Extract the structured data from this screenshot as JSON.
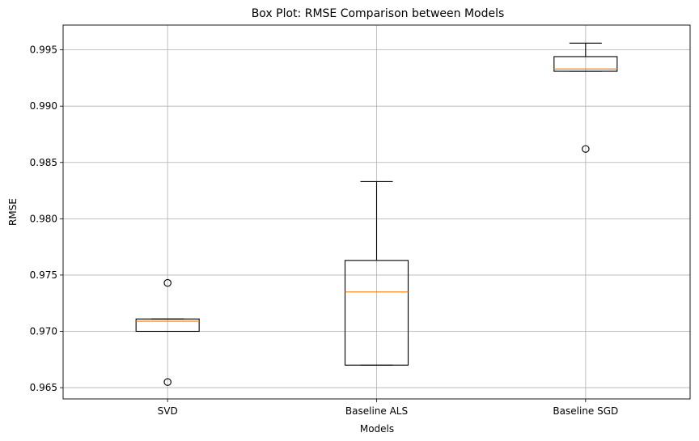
{
  "chart_data": {
    "type": "box",
    "title": "Box Plot: RMSE Comparison between Models",
    "xlabel": "Models",
    "ylabel": "RMSE",
    "categories": [
      "SVD",
      "Baseline ALS",
      "Baseline SGD"
    ],
    "ylim": [
      0.964,
      0.9972
    ],
    "yticks": [
      0.965,
      0.97,
      0.975,
      0.98,
      0.985,
      0.99,
      0.995
    ],
    "ytick_labels": [
      "0.965",
      "0.970",
      "0.975",
      "0.980",
      "0.985",
      "0.990",
      "0.995"
    ],
    "grid": true,
    "boxes": [
      {
        "category": "SVD",
        "whisker_low": 0.97,
        "q1": 0.97,
        "median": 0.9709,
        "q3": 0.9711,
        "whisker_high": 0.9711,
        "outliers": [
          0.9743,
          0.9655
        ]
      },
      {
        "category": "Baseline ALS",
        "whisker_low": 0.967,
        "q1": 0.967,
        "median": 0.9735,
        "q3": 0.9763,
        "whisker_high": 0.9833,
        "outliers": []
      },
      {
        "category": "Baseline SGD",
        "whisker_low": 0.9931,
        "q1": 0.9931,
        "median": 0.9933,
        "q3": 0.9944,
        "whisker_high": 0.9956,
        "outliers": [
          0.9862
        ]
      }
    ],
    "colors": {
      "box": "#000000",
      "median": "#ff7f0e",
      "grid": "#b0b0b0"
    }
  }
}
